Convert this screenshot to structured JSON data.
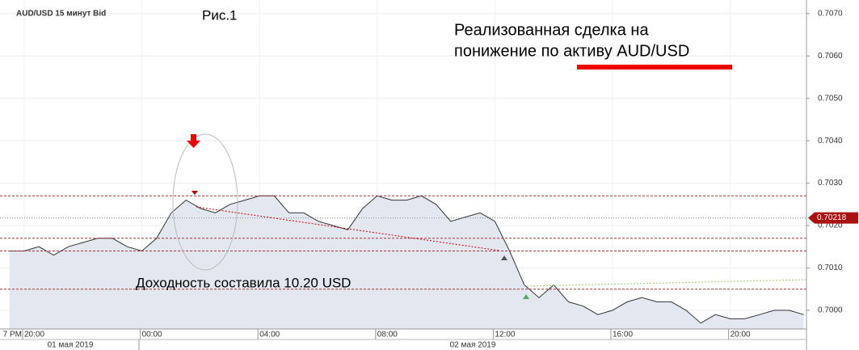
{
  "chart_data": {
    "type": "area",
    "title": "AUD/USD  15 минут Bid",
    "figure_label": "Рис.1",
    "annotation_lines": [
      "Реализованная сделка на",
      "понижение по активу AUD/USD"
    ],
    "profit_note": "Доходность составила 10.20 USD",
    "categories": [
      "7 PM",
      "20:00",
      null,
      null,
      null,
      null,
      null,
      null,
      null,
      "00:00",
      null,
      null,
      null,
      null,
      null,
      null,
      null,
      "04:00",
      null,
      null,
      null,
      null,
      null,
      null,
      null,
      "08:00",
      null,
      null,
      null,
      null,
      null,
      null,
      null,
      "12:00",
      null,
      null,
      null,
      null,
      null,
      null,
      null,
      "16:00",
      null,
      null,
      null,
      null,
      null,
      null,
      null,
      "20:00",
      null,
      null,
      null,
      null,
      null
    ],
    "date_labels": [
      "01 мая 2019",
      "02 мая 2019"
    ],
    "series": [
      {
        "name": "AUD/USD",
        "color": "#333333",
        "fill": "#e2e7f0",
        "values": [
          0.7014,
          0.7014,
          0.7015,
          0.7013,
          0.7015,
          0.7016,
          0.7017,
          0.7017,
          0.7015,
          0.7014,
          0.7017,
          0.7023,
          0.7026,
          0.7024,
          0.7023,
          0.7025,
          0.7026,
          0.7027,
          0.7027,
          0.7023,
          0.7023,
          0.7021,
          0.702,
          0.7019,
          0.7024,
          0.7027,
          0.7026,
          0.7026,
          0.7027,
          0.7025,
          0.7021,
          0.7022,
          0.7023,
          0.7021,
          0.7014,
          0.7006,
          0.7003,
          0.7006,
          0.7002,
          0.7001,
          0.6999,
          0.7,
          0.7002,
          0.7003,
          0.7002,
          0.7002,
          0.7,
          0.6997,
          0.6999,
          0.6998,
          0.6998,
          0.6999,
          0.7,
          0.7,
          0.6999
        ]
      }
    ],
    "reference_lines": [
      0.7027,
      0.7017,
      0.7014,
      0.7005
    ],
    "current_price": 0.70218,
    "ylim": [
      0.69956,
      0.70732
    ],
    "yticks": [
      {
        "value": 0.7,
        "label": "0.7000"
      },
      {
        "value": 0.701,
        "label": "0.7010"
      },
      {
        "value": 0.702,
        "label": "0.7020"
      },
      {
        "value": 0.703,
        "label": "0.7030"
      },
      {
        "value": 0.704,
        "label": "0.7040"
      },
      {
        "value": 0.705,
        "label": "0.7050"
      },
      {
        "value": 0.706,
        "label": "0.7060"
      },
      {
        "value": 0.707,
        "label": "0.7070"
      }
    ],
    "grid": true
  }
}
